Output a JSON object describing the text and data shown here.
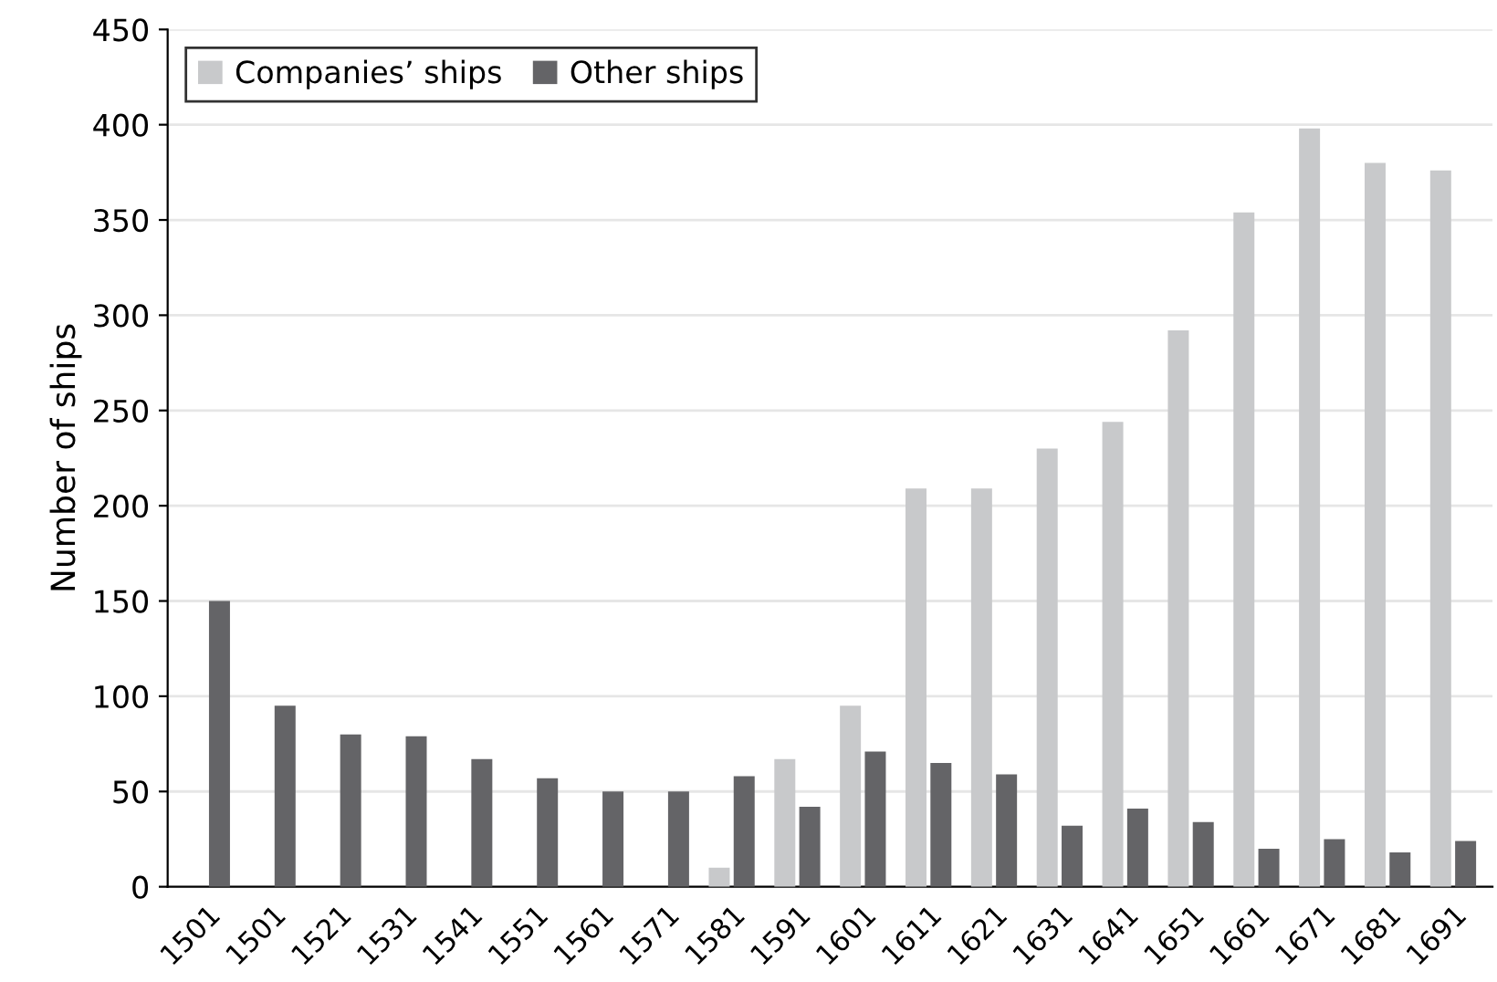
{
  "chart_data": {
    "type": "bar",
    "ylabel": "Number of ships",
    "categories": [
      "1501",
      "1501",
      "1521",
      "1531",
      "1541",
      "1551",
      "1561",
      "1571",
      "1581",
      "1591",
      "1601",
      "1611",
      "1621",
      "1631",
      "1641",
      "1651",
      "1661",
      "1671",
      "1681",
      "1691"
    ],
    "series": [
      {
        "name": "Companies’ ships",
        "color": "#c8c9cb",
        "values": [
          null,
          null,
          null,
          null,
          null,
          null,
          null,
          null,
          10,
          67,
          95,
          209,
          209,
          230,
          244,
          292,
          354,
          398,
          380,
          376
        ]
      },
      {
        "name": "Other ships",
        "color": "#646467",
        "values": [
          150,
          95,
          80,
          79,
          67,
          57,
          50,
          50,
          58,
          42,
          71,
          65,
          59,
          32,
          41,
          34,
          20,
          25,
          18,
          24
        ]
      }
    ],
    "ylim": [
      0,
      450
    ],
    "yticks": [
      0,
      50,
      100,
      150,
      200,
      250,
      300,
      350,
      400,
      450
    ],
    "grid": "y",
    "legend": "top left"
  }
}
